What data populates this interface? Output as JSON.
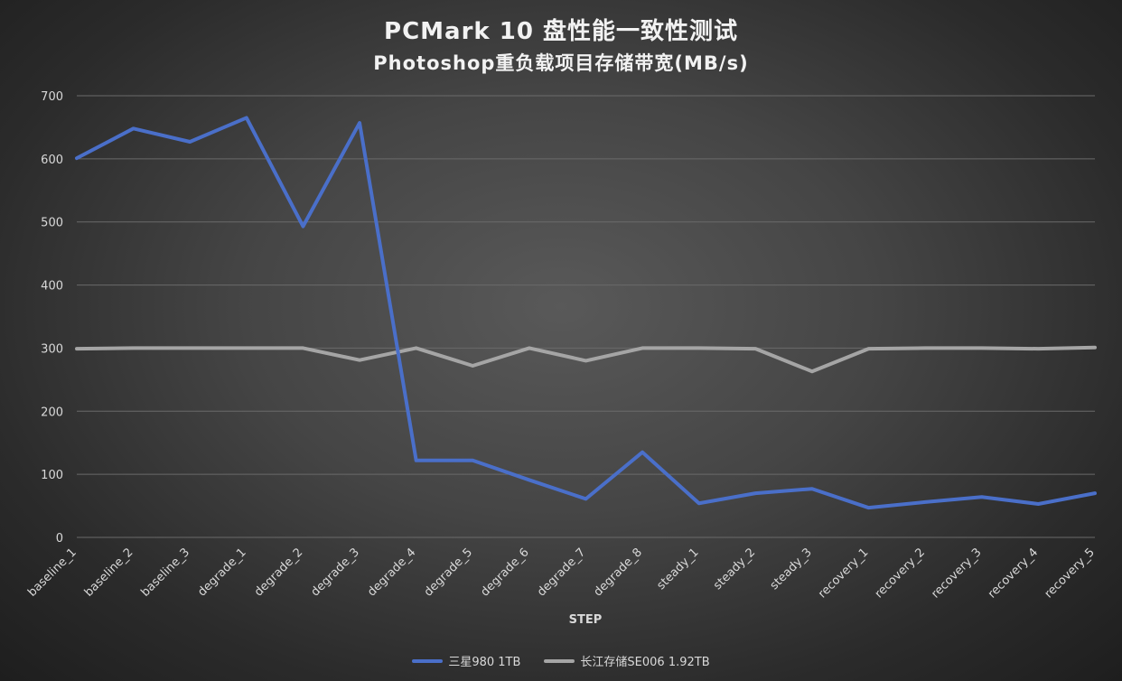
{
  "chart_data": {
    "type": "line",
    "title": "PCMark 10 盘性能一致性测试",
    "subtitle": "Photoshop重负载项目存储带宽(MB/s)",
    "xlabel": "STEP",
    "ylabel": "",
    "ylim": [
      0,
      700
    ],
    "yticks": [
      "0",
      "100",
      "200",
      "300",
      "400",
      "500",
      "600",
      "700"
    ],
    "grid": true,
    "legend_position": "bottom",
    "categories": [
      "baseline_1",
      "baseline_2",
      "baseline_3",
      "degrade_1",
      "degrade_2",
      "degrade_3",
      "degrade_4",
      "degrade_5",
      "degrade_6",
      "degrade_7",
      "degrade_8",
      "steady_1",
      "steady_2",
      "steady_3",
      "recovery_1",
      "recovery_2",
      "recovery_3",
      "recovery_4",
      "recovery_5"
    ],
    "series": [
      {
        "name": "三星980 1TB",
        "color": "#4a6fc9",
        "values": [
          601,
          648,
          627,
          665,
          493,
          657,
          122,
          122,
          91,
          61,
          135,
          54,
          70,
          77,
          47,
          56,
          64,
          53,
          70
        ]
      },
      {
        "name": "长江存储SE006 1.92TB",
        "color": "#a5a5a5",
        "values": [
          299,
          300,
          300,
          300,
          300,
          281,
          300,
          272,
          300,
          280,
          300,
          300,
          299,
          263,
          299,
          300,
          300,
          299,
          301
        ]
      }
    ]
  }
}
